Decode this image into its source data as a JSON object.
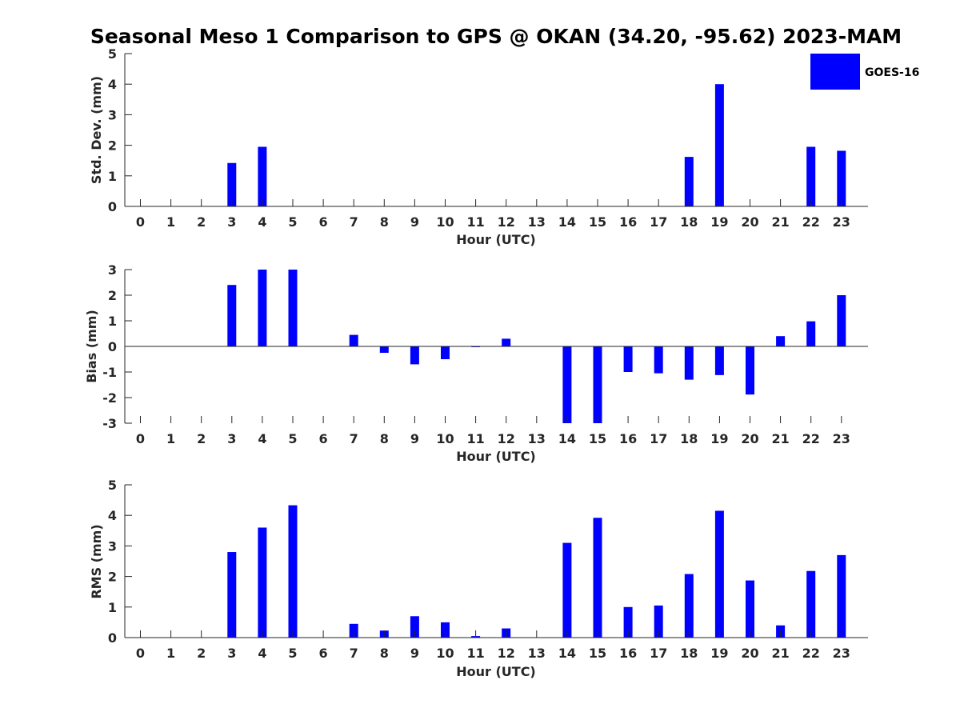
{
  "chart_data": [
    {
      "type": "bar",
      "title": "Seasonal Meso 1 Comparison to GPS @ OKAN (34.20, -95.62) 2023-MAM",
      "xlabel": "Hour (UTC)",
      "ylabel": "Std. Dev. (mm)",
      "ylim": [
        0,
        5
      ],
      "yticks": [
        0,
        1,
        2,
        3,
        4,
        5
      ],
      "categories": [
        "0",
        "1",
        "2",
        "3",
        "4",
        "5",
        "6",
        "7",
        "8",
        "9",
        "10",
        "11",
        "12",
        "13",
        "14",
        "15",
        "16",
        "17",
        "18",
        "19",
        "20",
        "21",
        "22",
        "23"
      ],
      "series": [
        {
          "name": "GOES-16",
          "values": [
            0,
            0,
            0,
            1.42,
            1.95,
            0,
            0,
            0,
            0,
            0,
            0,
            0,
            0,
            0,
            0,
            0,
            0,
            0,
            1.62,
            4.0,
            0,
            0,
            1.95,
            1.82
          ]
        }
      ],
      "legend": "top-right",
      "grid": false
    },
    {
      "type": "bar",
      "xlabel": "Hour (UTC)",
      "ylabel": "Bias (mm)",
      "ylim": [
        -3,
        3
      ],
      "yticks": [
        -3,
        -2,
        -1,
        0,
        1,
        2,
        3
      ],
      "categories": [
        "0",
        "1",
        "2",
        "3",
        "4",
        "5",
        "6",
        "7",
        "8",
        "9",
        "10",
        "11",
        "12",
        "13",
        "14",
        "15",
        "16",
        "17",
        "18",
        "19",
        "20",
        "21",
        "22",
        "23"
      ],
      "series": [
        {
          "name": "GOES-16",
          "values": [
            0,
            0,
            0,
            2.4,
            3.0,
            3.0,
            0,
            0.45,
            -0.25,
            -0.7,
            -0.5,
            -0.03,
            0.3,
            0,
            -3.0,
            -3.0,
            -1.0,
            -1.05,
            -1.3,
            -1.12,
            -1.88,
            0.4,
            0.98,
            2.0
          ]
        }
      ],
      "grid": false
    },
    {
      "type": "bar",
      "xlabel": "Hour (UTC)",
      "ylabel": "RMS (mm)",
      "ylim": [
        0,
        5
      ],
      "yticks": [
        0,
        1,
        2,
        3,
        4,
        5
      ],
      "categories": [
        "0",
        "1",
        "2",
        "3",
        "4",
        "5",
        "6",
        "7",
        "8",
        "9",
        "10",
        "11",
        "12",
        "13",
        "14",
        "15",
        "16",
        "17",
        "18",
        "19",
        "20",
        "21",
        "22",
        "23"
      ],
      "series": [
        {
          "name": "GOES-16",
          "values": [
            0,
            0,
            0,
            2.8,
            3.6,
            4.33,
            0,
            0.45,
            0.23,
            0.7,
            0.5,
            0.05,
            0.3,
            0,
            3.1,
            3.92,
            1.0,
            1.05,
            2.08,
            4.15,
            1.87,
            0.4,
            2.18,
            2.7
          ]
        }
      ],
      "grid": false
    }
  ],
  "colors": {
    "bar": "#0000ff",
    "axis": "#262626"
  }
}
